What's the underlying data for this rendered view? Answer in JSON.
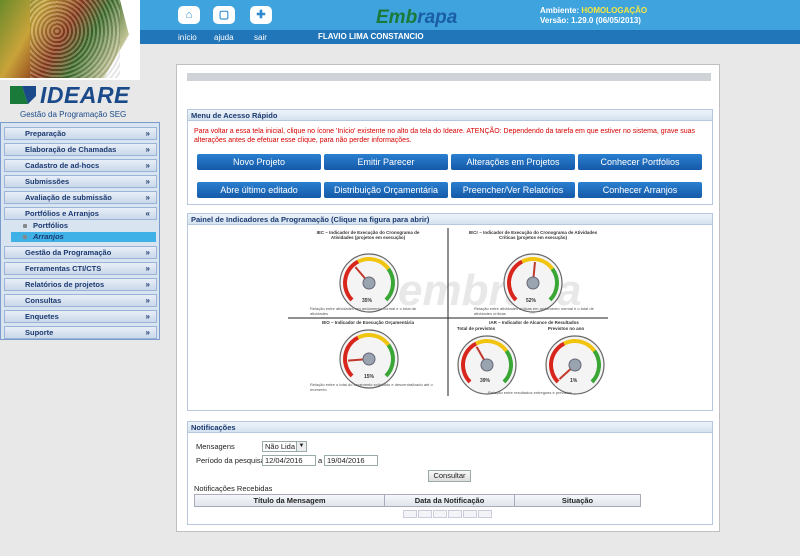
{
  "header": {
    "nav": [
      {
        "label": "início",
        "icon": "home-icon"
      },
      {
        "label": "ajuda",
        "icon": "help-icon"
      },
      {
        "label": "sair",
        "icon": "exit-icon"
      }
    ],
    "brand_a": "Emb",
    "brand_b": "rapa",
    "user_name": "FLAVIO LIMA CONSTANCIO",
    "env_label": "Ambiente:",
    "env_value": "HOMOLOGAÇÃO",
    "version": "Versão: 1.29.0 (06/05/2013)"
  },
  "logo": {
    "name": "IDEARE",
    "tagline": "Gestão da Programação SEG"
  },
  "sidebar": {
    "items": [
      {
        "label": "Preparação",
        "chev": "»"
      },
      {
        "label": "Elaboração de Chamadas",
        "chev": "»"
      },
      {
        "label": "Cadastro de ad-hocs",
        "chev": "»"
      },
      {
        "label": "Submissões",
        "chev": "»"
      },
      {
        "label": "Avaliação de submissão",
        "chev": "»"
      },
      {
        "label": "Portfólios e Arranjos",
        "chev": "«"
      },
      {
        "label": "Gestão da Programação",
        "chev": "»"
      },
      {
        "label": "Ferramentas CTI/CTS",
        "chev": "»"
      },
      {
        "label": "Relatórios de projetos",
        "chev": "»"
      },
      {
        "label": "Consultas",
        "chev": "»"
      },
      {
        "label": "Enquetes",
        "chev": "»"
      },
      {
        "label": "Suporte",
        "chev": "»"
      }
    ],
    "subitems": [
      {
        "label": "Portfólios"
      },
      {
        "label": "Arranjos"
      }
    ]
  },
  "quick_access": {
    "title": "Menu de Acesso Rápido",
    "warning": "Para voltar a essa tela inicial, clique no ícone 'Início' existente no alto da tela do Ideare. ATENÇÃO: Dependendo da tarefa em que estiver no sistema, grave suas alterações antes de efetuar esse clique, para não perder informações.",
    "buttons": [
      "Novo Projeto",
      "Emitir Parecer",
      "Alterações em Projetos",
      "Conhecer Portfólios",
      "Abre último editado",
      "Distribuição Orçamentária",
      "Preencher/Ver Relatórios",
      "Conhecer Arranjos"
    ]
  },
  "indicators": {
    "title": "Painel de Indicadores da Programação (Clique na figura para abrir)",
    "gauges": [
      {
        "caption": "IEC – Indicador de Execução do Cronograma de Atividades (projetos em execução)",
        "value": 35,
        "value_label": "35%",
        "note": "Relação entre atividades em andamento normal e o total de atividades"
      },
      {
        "caption": "IECr – Indicador de Execução do Cronograma de Atividades Críticas (projetos em execução)",
        "value": 52,
        "value_label": "52%",
        "note": "Relação entre atividades críticas em andamento normal e o total de atividades críticas"
      },
      {
        "caption": "IEO – Indicador de Execução Orçamentária",
        "value": 15,
        "value_label": "15%",
        "note": "Relação entre o total do orçamento solicitado e descentralizado até o momento"
      },
      {
        "caption": "Total de previstos",
        "value": 39,
        "value_label": "39%",
        "note": ""
      },
      {
        "caption": "Previstos no ano",
        "value": 1,
        "value_label": "1%",
        "note": ""
      }
    ],
    "iar_caption": "IAR – Indicador de Alcance de Resultados",
    "iar_note": "Relação entre resultados entregues e previstos"
  },
  "notifications": {
    "title": "Notificações",
    "messages_label": "Mensagens",
    "messages_value": "Não Lida",
    "period_label": "Período da pesquisa",
    "date_from": "12/04/2016",
    "date_sep": "a",
    "date_to": "19/04/2016",
    "consult_label": "Consultar",
    "received_label": "Notificações Recebidas",
    "columns": [
      "Título da Mensagem",
      "Data da Notificação",
      "Situação"
    ]
  }
}
